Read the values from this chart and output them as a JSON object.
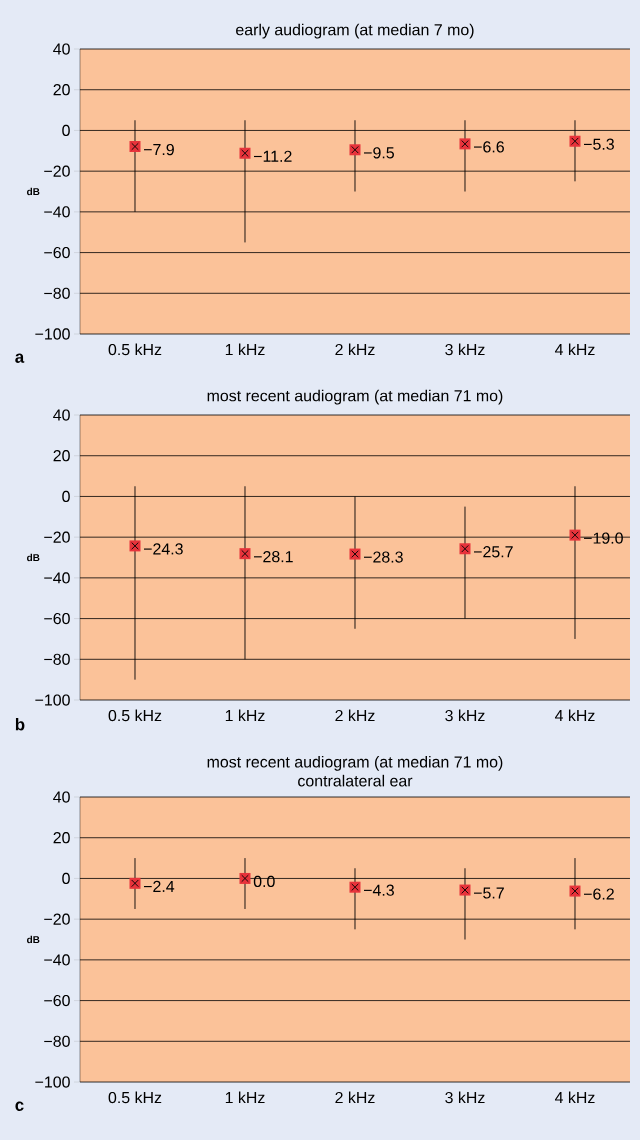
{
  "chart_data": [
    {
      "type": "scatter",
      "title": "early audiogram (at median 7 mo)",
      "ylabel": "dB",
      "annotations": [
        "a"
      ],
      "categories": [
        "0.5 kHz",
        "1 kHz",
        "2 kHz",
        "3 kHz",
        "4 kHz"
      ],
      "values": [
        -7.9,
        -11.2,
        -9.5,
        -6.6,
        -5.3
      ],
      "value_labels": [
        "−7.9",
        "−11.2",
        "−9.5",
        "−6.6",
        "−5.3"
      ],
      "errors": [
        [
          -40,
          5
        ],
        [
          -55,
          5
        ],
        [
          -30,
          5
        ],
        [
          -30,
          5
        ],
        [
          -25,
          5
        ]
      ],
      "color": "#e8333b",
      "marker": "square",
      "grid": "y",
      "ylim": [
        -100,
        40
      ],
      "yticks": [
        {
          "value": -100,
          "label": "−100"
        },
        {
          "value": -80,
          "label": "−80"
        },
        {
          "value": -60,
          "label": "−60"
        },
        {
          "value": -40,
          "label": "−40"
        },
        {
          "value": -20,
          "label": "−20"
        },
        0,
        20,
        40
      ]
    },
    {
      "type": "scatter",
      "title": "most recent audiogram (at median 71 mo)",
      "ylabel": "dB",
      "annotations": [
        "b"
      ],
      "categories": [
        "0.5 kHz",
        "1 kHz",
        "2 kHz",
        "3 kHz",
        "4 kHz"
      ],
      "values": [
        -24.3,
        -28.1,
        -28.3,
        -25.7,
        -19.0
      ],
      "value_labels": [
        "−24.3",
        "−28.1",
        "−28.3",
        "−25.7",
        "−19.0"
      ],
      "errors": [
        [
          -90,
          5
        ],
        [
          -80,
          5
        ],
        [
          -65,
          0
        ],
        [
          -60,
          -5
        ],
        [
          -70,
          5
        ]
      ],
      "color": "#e8333b",
      "marker": "square",
      "grid": "y",
      "ylim": [
        -100,
        40
      ],
      "yticks": [
        {
          "value": -100,
          "label": "−100"
        },
        {
          "value": -80,
          "label": "−80"
        },
        {
          "value": -60,
          "label": "−60"
        },
        {
          "value": -40,
          "label": "−40"
        },
        {
          "value": -20,
          "label": "−20"
        },
        0,
        20,
        40
      ]
    },
    {
      "type": "scatter",
      "title": "most recent audiogram (at median 71 mo)",
      "subtitle": "contralateral ear",
      "ylabel": "dB",
      "annotations": [
        "c"
      ],
      "categories": [
        "0.5 kHz",
        "1 kHz",
        "2 kHz",
        "3 kHz",
        "4 kHz"
      ],
      "values": [
        -2.4,
        0.0,
        -4.3,
        -5.7,
        -6.2
      ],
      "value_labels": [
        "−2.4",
        "0.0",
        "−4.3",
        "−5.7",
        "−6.2"
      ],
      "errors": [
        [
          -15,
          10
        ],
        [
          -15,
          10
        ],
        [
          -25,
          5
        ],
        [
          -30,
          5
        ],
        [
          -25,
          10
        ]
      ],
      "color": "#e8333b",
      "marker": "square",
      "grid": "y",
      "ylim": [
        -100,
        40
      ],
      "yticks": [
        {
          "value": -100,
          "label": "−100"
        },
        {
          "value": -80,
          "label": "−80"
        },
        {
          "value": -60,
          "label": "−60"
        },
        {
          "value": -40,
          "label": "−40"
        },
        {
          "value": -20,
          "label": "−20"
        },
        0,
        20,
        40
      ]
    }
  ]
}
